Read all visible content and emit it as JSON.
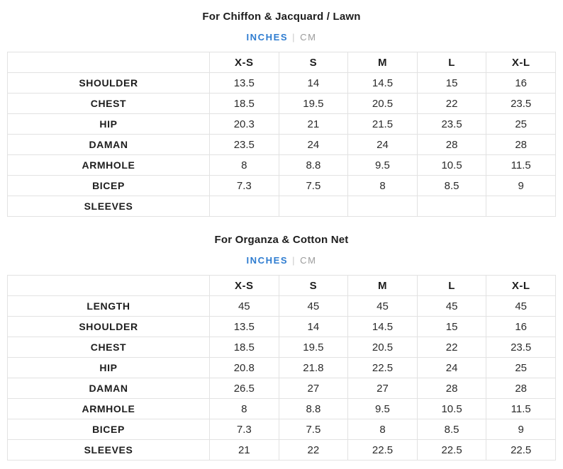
{
  "toggle": {
    "inches_label": "INCHES",
    "separator": "|",
    "cm_label": "CM",
    "active_unit": "INCHES",
    "active_color": "#2e7cd0",
    "inactive_color": "#9b9b9b"
  },
  "colors": {
    "table_border": "#e2e2e2",
    "text_dark": "#1d1d1d",
    "value_text": "#2b2b2b"
  },
  "tables": [
    {
      "title": "For Chiffon & Jacquard / Lawn",
      "columns": [
        "",
        "X-S",
        "S",
        "M",
        "L",
        "X-L"
      ],
      "rows": [
        {
          "label": "SHOULDER",
          "values": [
            "13.5",
            "14",
            "14.5",
            "15",
            "16"
          ]
        },
        {
          "label": "CHEST",
          "values": [
            "18.5",
            "19.5",
            "20.5",
            "22",
            "23.5"
          ]
        },
        {
          "label": "HIP",
          "values": [
            "20.3",
            "21",
            "21.5",
            "23.5",
            "25"
          ]
        },
        {
          "label": "DAMAN",
          "values": [
            "23.5",
            "24",
            "24",
            "28",
            "28"
          ]
        },
        {
          "label": "ARMHOLE",
          "values": [
            "8",
            "8.8",
            "9.5",
            "10.5",
            "11.5"
          ]
        },
        {
          "label": "BICEP",
          "values": [
            "7.3",
            "7.5",
            "8",
            "8.5",
            "9"
          ]
        },
        {
          "label": "SLEEVES",
          "values": [
            "",
            "",
            "",
            "",
            ""
          ]
        }
      ]
    },
    {
      "title": "For Organza & Cotton Net",
      "columns": [
        "",
        "X-S",
        "S",
        "M",
        "L",
        "X-L"
      ],
      "rows": [
        {
          "label": "LENGTH",
          "values": [
            "45",
            "45",
            "45",
            "45",
            "45"
          ]
        },
        {
          "label": "SHOULDER",
          "values": [
            "13.5",
            "14",
            "14.5",
            "15",
            "16"
          ]
        },
        {
          "label": "CHEST",
          "values": [
            "18.5",
            "19.5",
            "20.5",
            "22",
            "23.5"
          ]
        },
        {
          "label": "HIP",
          "values": [
            "20.8",
            "21.8",
            "22.5",
            "24",
            "25"
          ]
        },
        {
          "label": "DAMAN",
          "values": [
            "26.5",
            "27",
            "27",
            "28",
            "28"
          ]
        },
        {
          "label": "ARMHOLE",
          "values": [
            "8",
            "8.8",
            "9.5",
            "10.5",
            "11.5"
          ]
        },
        {
          "label": "BICEP",
          "values": [
            "7.3",
            "7.5",
            "8",
            "8.5",
            "9"
          ]
        },
        {
          "label": "SLEEVES",
          "values": [
            "21",
            "22",
            "22.5",
            "22.5",
            "22.5"
          ]
        }
      ]
    }
  ]
}
